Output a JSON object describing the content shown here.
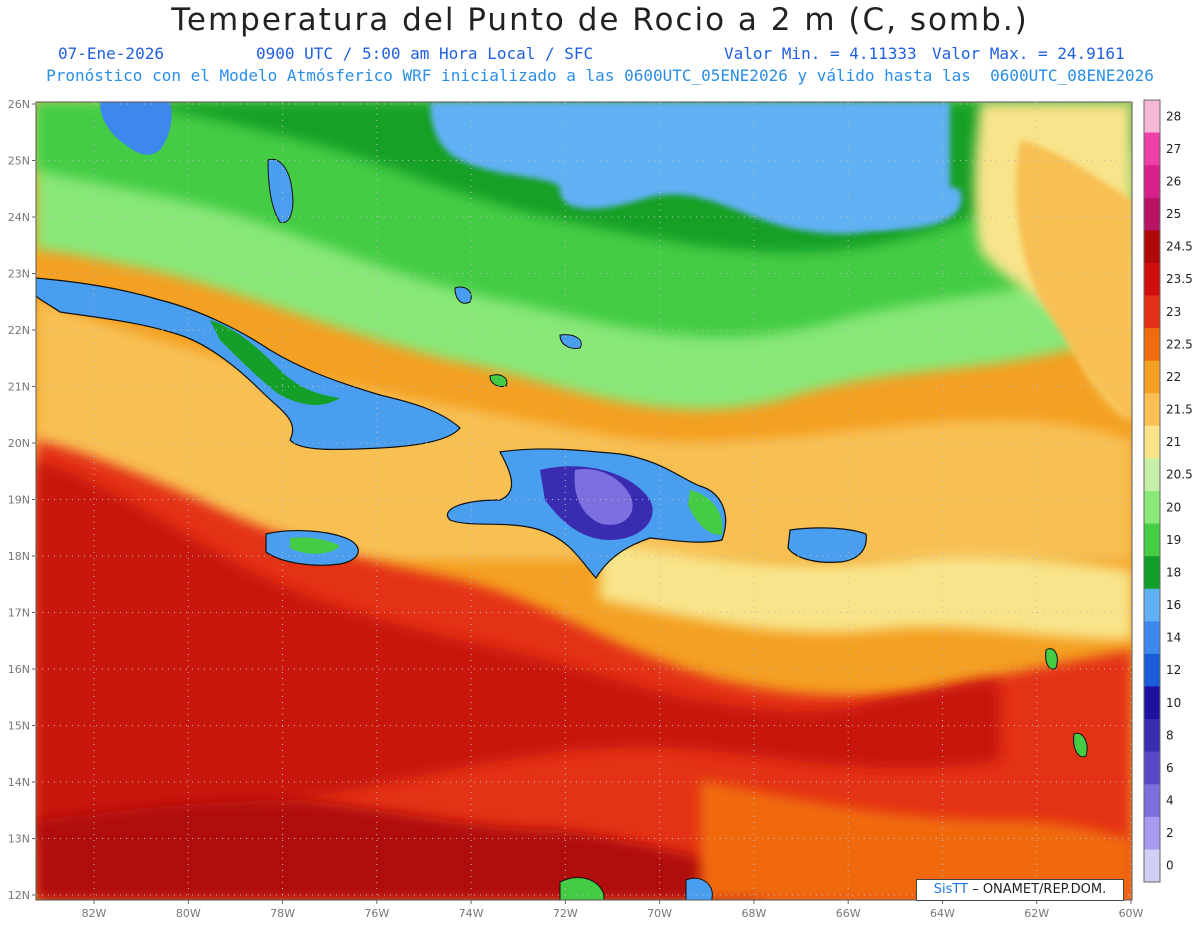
{
  "header": {
    "title": "Temperatura del Punto de Rocio a 2 m (C, somb.)",
    "date": "07-Ene-2026",
    "time": "0900 UTC / 5:00 am Hora Local / SFC",
    "vmin": "Valor Min. = 4.11333",
    "vmax": "Valor Max. = 24.9161",
    "model_line": "Pronóstico con el Modelo Atmósferico WRF inicializado a las 0600UTC_05ENE2026 y válido hasta las  0600UTC_08ENE2026"
  },
  "lat_labels": [
    "26N",
    "25N",
    "24N",
    "23N",
    "22N",
    "21N",
    "20N",
    "19N",
    "18N",
    "17N",
    "16N",
    "15N",
    "14N",
    "13N",
    "12N"
  ],
  "lon_labels": [
    "82W",
    "80W",
    "78W",
    "76W",
    "74W",
    "72W",
    "70W",
    "68W",
    "66W",
    "64W",
    "62W",
    "60W"
  ],
  "colorbar": {
    "labels": [
      "28",
      "27",
      "26",
      "25",
      "24.5",
      "23.5",
      "23",
      "22.5",
      "22",
      "21.5",
      "21",
      "20.5",
      "20",
      "19",
      "18",
      "16",
      "14",
      "12",
      "10",
      "8",
      "6",
      "4",
      "2",
      "0"
    ],
    "colors": [
      "#f5b8d8",
      "#ee3ea8",
      "#d8208a",
      "#b81466",
      "#b00808",
      "#d01010",
      "#e43018",
      "#f06a10",
      "#f4a022",
      "#f8c052",
      "#f8e48a",
      "#c4f0a8",
      "#88e878",
      "#44cc44",
      "#14a028",
      "#60b0f4",
      "#3c88ec",
      "#1c5cd8",
      "#2010a0",
      "#3a2cb0",
      "#5848c8",
      "#7c70e0",
      "#a898f0",
      "#d0d0f4"
    ]
  },
  "credit": {
    "brand": "SisTT",
    "rest": " – ONAMET/REP.DOM."
  },
  "map_colors": {
    "ocean_warm": "#d41610",
    "land_cool": "#4a9ef0"
  }
}
